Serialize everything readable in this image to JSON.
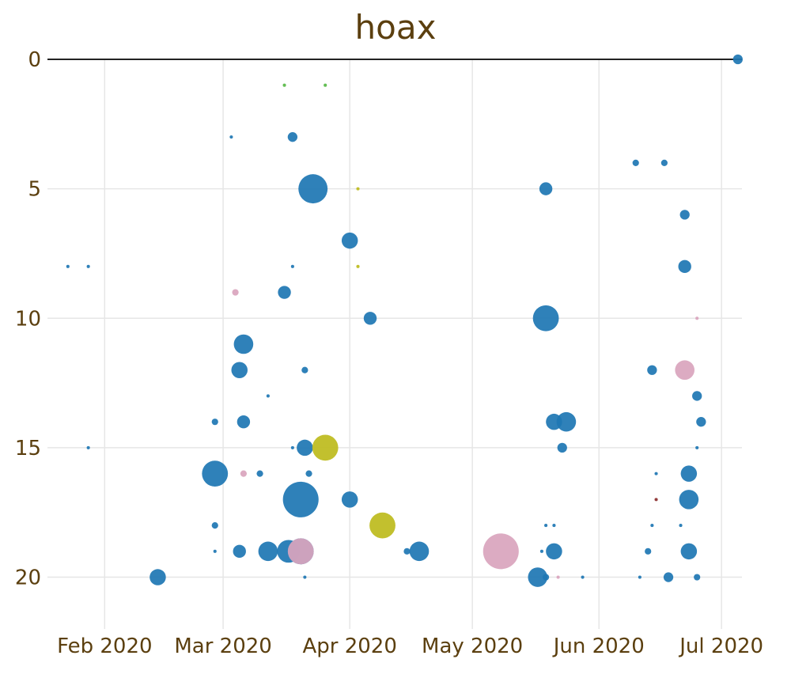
{
  "colors": {
    "text": "#5b3f0f",
    "grid": "#e6e6e6",
    "axis": "#222222",
    "blue": "#1f77b4",
    "pink": "#d9a5bd",
    "olive": "#bdbb1e",
    "green": "#58b947",
    "brown": "#8b2e2e"
  },
  "chart_data": {
    "type": "scatter",
    "title": "hoax",
    "xlabel": "",
    "ylabel": "",
    "x_tick_labels": [
      "Feb 2020",
      "Mar 2020",
      "Apr 2020",
      "May 2020",
      "Jun 2020",
      "Jul 2020"
    ],
    "y_ticks": [
      0,
      5,
      10,
      15,
      20
    ],
    "y_tick_labels": [
      "0",
      "5",
      "10",
      "15",
      "20"
    ],
    "x_range": [
      "2020-01-18",
      "2020-07-06"
    ],
    "y_range": [
      0,
      22
    ],
    "y_reversed": true,
    "grid": true,
    "legend": "none",
    "point_size_note": "bubble area encodes an unlabeled magnitude",
    "points": [
      {
        "date": "2020-07-05",
        "y": 0,
        "size": 3,
        "color": "blue"
      },
      {
        "date": "2020-03-16",
        "y": 1,
        "size": 1,
        "color": "green"
      },
      {
        "date": "2020-03-26",
        "y": 1,
        "size": 1,
        "color": "green"
      },
      {
        "date": "2020-03-18",
        "y": 3,
        "size": 3,
        "color": "blue"
      },
      {
        "date": "2020-03-03",
        "y": 3,
        "size": 1,
        "color": "blue"
      },
      {
        "date": "2020-03-23",
        "y": 5,
        "size": 9,
        "color": "blue"
      },
      {
        "date": "2020-04-03",
        "y": 5,
        "size": 1,
        "color": "olive"
      },
      {
        "date": "2020-05-19",
        "y": 5,
        "size": 4,
        "color": "blue"
      },
      {
        "date": "2020-06-10",
        "y": 4,
        "size": 2,
        "color": "blue"
      },
      {
        "date": "2020-06-17",
        "y": 4,
        "size": 2,
        "color": "blue"
      },
      {
        "date": "2020-06-22",
        "y": 6,
        "size": 3,
        "color": "blue"
      },
      {
        "date": "2020-04-01",
        "y": 7,
        "size": 5,
        "color": "blue"
      },
      {
        "date": "2020-01-23",
        "y": 8,
        "size": 1,
        "color": "blue"
      },
      {
        "date": "2020-01-28",
        "y": 8,
        "size": 1,
        "color": "blue"
      },
      {
        "date": "2020-03-18",
        "y": 8,
        "size": 1,
        "color": "blue"
      },
      {
        "date": "2020-04-03",
        "y": 8,
        "size": 1,
        "color": "olive"
      },
      {
        "date": "2020-06-22",
        "y": 8,
        "size": 4,
        "color": "blue"
      },
      {
        "date": "2020-03-04",
        "y": 9,
        "size": 2,
        "color": "pink"
      },
      {
        "date": "2020-03-16",
        "y": 9,
        "size": 4,
        "color": "blue"
      },
      {
        "date": "2020-04-06",
        "y": 10,
        "size": 4,
        "color": "blue"
      },
      {
        "date": "2020-05-19",
        "y": 10,
        "size": 8,
        "color": "blue"
      },
      {
        "date": "2020-06-25",
        "y": 10,
        "size": 1,
        "color": "pink"
      },
      {
        "date": "2020-03-06",
        "y": 11,
        "size": 6,
        "color": "blue"
      },
      {
        "date": "2020-03-05",
        "y": 12,
        "size": 5,
        "color": "blue"
      },
      {
        "date": "2020-03-21",
        "y": 12,
        "size": 2,
        "color": "blue"
      },
      {
        "date": "2020-06-14",
        "y": 12,
        "size": 3,
        "color": "blue"
      },
      {
        "date": "2020-06-22",
        "y": 12,
        "size": 6,
        "color": "pink"
      },
      {
        "date": "2020-03-12",
        "y": 13,
        "size": 1,
        "color": "blue"
      },
      {
        "date": "2020-06-25",
        "y": 13,
        "size": 3,
        "color": "blue"
      },
      {
        "date": "2020-02-28",
        "y": 14,
        "size": 2,
        "color": "blue"
      },
      {
        "date": "2020-03-06",
        "y": 14,
        "size": 4,
        "color": "blue"
      },
      {
        "date": "2020-05-21",
        "y": 14,
        "size": 5,
        "color": "blue"
      },
      {
        "date": "2020-05-24",
        "y": 14,
        "size": 6,
        "color": "blue"
      },
      {
        "date": "2020-06-26",
        "y": 14,
        "size": 3,
        "color": "blue"
      },
      {
        "date": "2020-01-28",
        "y": 15,
        "size": 1,
        "color": "blue"
      },
      {
        "date": "2020-03-18",
        "y": 15,
        "size": 1,
        "color": "blue"
      },
      {
        "date": "2020-03-21",
        "y": 15,
        "size": 5,
        "color": "blue"
      },
      {
        "date": "2020-03-26",
        "y": 15,
        "size": 8,
        "color": "olive"
      },
      {
        "date": "2020-05-23",
        "y": 15,
        "size": 3,
        "color": "blue"
      },
      {
        "date": "2020-06-25",
        "y": 15,
        "size": 1,
        "color": "blue"
      },
      {
        "date": "2020-02-28",
        "y": 16,
        "size": 8,
        "color": "blue"
      },
      {
        "date": "2020-03-06",
        "y": 16,
        "size": 2,
        "color": "pink"
      },
      {
        "date": "2020-03-10",
        "y": 16,
        "size": 2,
        "color": "blue"
      },
      {
        "date": "2020-03-22",
        "y": 16,
        "size": 2,
        "color": "blue"
      },
      {
        "date": "2020-06-15",
        "y": 16,
        "size": 1,
        "color": "blue"
      },
      {
        "date": "2020-06-23",
        "y": 16,
        "size": 5,
        "color": "blue"
      },
      {
        "date": "2020-03-20",
        "y": 17,
        "size": 11,
        "color": "blue"
      },
      {
        "date": "2020-04-01",
        "y": 17,
        "size": 5,
        "color": "blue"
      },
      {
        "date": "2020-06-15",
        "y": 17,
        "size": 1,
        "color": "brown"
      },
      {
        "date": "2020-06-23",
        "y": 17,
        "size": 6,
        "color": "blue"
      },
      {
        "date": "2020-02-28",
        "y": 18,
        "size": 2,
        "color": "blue"
      },
      {
        "date": "2020-04-09",
        "y": 18,
        "size": 8,
        "color": "olive"
      },
      {
        "date": "2020-05-19",
        "y": 18,
        "size": 1,
        "color": "blue"
      },
      {
        "date": "2020-05-21",
        "y": 18,
        "size": 1,
        "color": "blue"
      },
      {
        "date": "2020-06-14",
        "y": 18,
        "size": 1,
        "color": "blue"
      },
      {
        "date": "2020-06-21",
        "y": 18,
        "size": 1,
        "color": "blue"
      },
      {
        "date": "2020-02-28",
        "y": 19,
        "size": 1,
        "color": "blue"
      },
      {
        "date": "2020-03-05",
        "y": 19,
        "size": 4,
        "color": "blue"
      },
      {
        "date": "2020-03-12",
        "y": 19,
        "size": 6,
        "color": "blue"
      },
      {
        "date": "2020-03-17",
        "y": 19,
        "size": 7,
        "color": "blue"
      },
      {
        "date": "2020-03-20",
        "y": 19,
        "size": 8,
        "color": "blue"
      },
      {
        "date": "2020-03-20",
        "y": 19,
        "size": 8,
        "color": "pink"
      },
      {
        "date": "2020-04-15",
        "y": 19,
        "size": 2,
        "color": "blue"
      },
      {
        "date": "2020-04-18",
        "y": 19,
        "size": 6,
        "color": "blue"
      },
      {
        "date": "2020-05-08",
        "y": 19,
        "size": 11,
        "color": "pink"
      },
      {
        "date": "2020-05-18",
        "y": 19,
        "size": 1,
        "color": "blue"
      },
      {
        "date": "2020-05-21",
        "y": 19,
        "size": 5,
        "color": "blue"
      },
      {
        "date": "2020-06-13",
        "y": 19,
        "size": 2,
        "color": "blue"
      },
      {
        "date": "2020-06-23",
        "y": 19,
        "size": 5,
        "color": "blue"
      },
      {
        "date": "2020-02-14",
        "y": 20,
        "size": 5,
        "color": "blue"
      },
      {
        "date": "2020-03-21",
        "y": 20,
        "size": 1,
        "color": "blue"
      },
      {
        "date": "2020-05-17",
        "y": 20,
        "size": 6,
        "color": "blue"
      },
      {
        "date": "2020-05-19",
        "y": 20,
        "size": 2,
        "color": "blue"
      },
      {
        "date": "2020-05-22",
        "y": 20,
        "size": 1,
        "color": "pink"
      },
      {
        "date": "2020-05-28",
        "y": 20,
        "size": 1,
        "color": "blue"
      },
      {
        "date": "2020-06-11",
        "y": 20,
        "size": 1,
        "color": "blue"
      },
      {
        "date": "2020-06-18",
        "y": 20,
        "size": 3,
        "color": "blue"
      },
      {
        "date": "2020-06-25",
        "y": 20,
        "size": 2,
        "color": "blue"
      }
    ]
  }
}
